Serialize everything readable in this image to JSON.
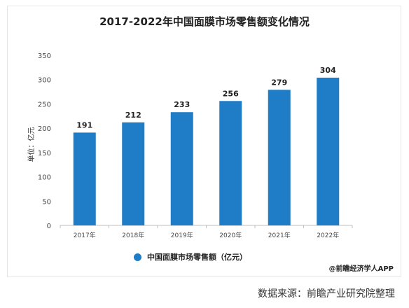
{
  "page": {
    "credit": "@前瞻经济学人APP",
    "source": "数据来源：前瞻产业研究院整理"
  },
  "chart_data": {
    "type": "bar",
    "title": "2017-2022年中国面膜市场零售额变化情况",
    "ylabel": "单位：亿元",
    "xlabel": "",
    "categories": [
      "2017年",
      "2018年",
      "2019年",
      "2020年",
      "2021年",
      "2022年"
    ],
    "series": [
      {
        "name": "中国面膜市场零售额（亿元）",
        "values": [
          191,
          212,
          233,
          256,
          279,
          304
        ]
      }
    ],
    "ylim": [
      0,
      350
    ],
    "yticks": [
      0,
      50,
      100,
      150,
      200,
      250,
      300,
      350
    ],
    "grid": false,
    "legend": "bottom",
    "bar_color": "#1f7cc6",
    "data_labels": true
  }
}
